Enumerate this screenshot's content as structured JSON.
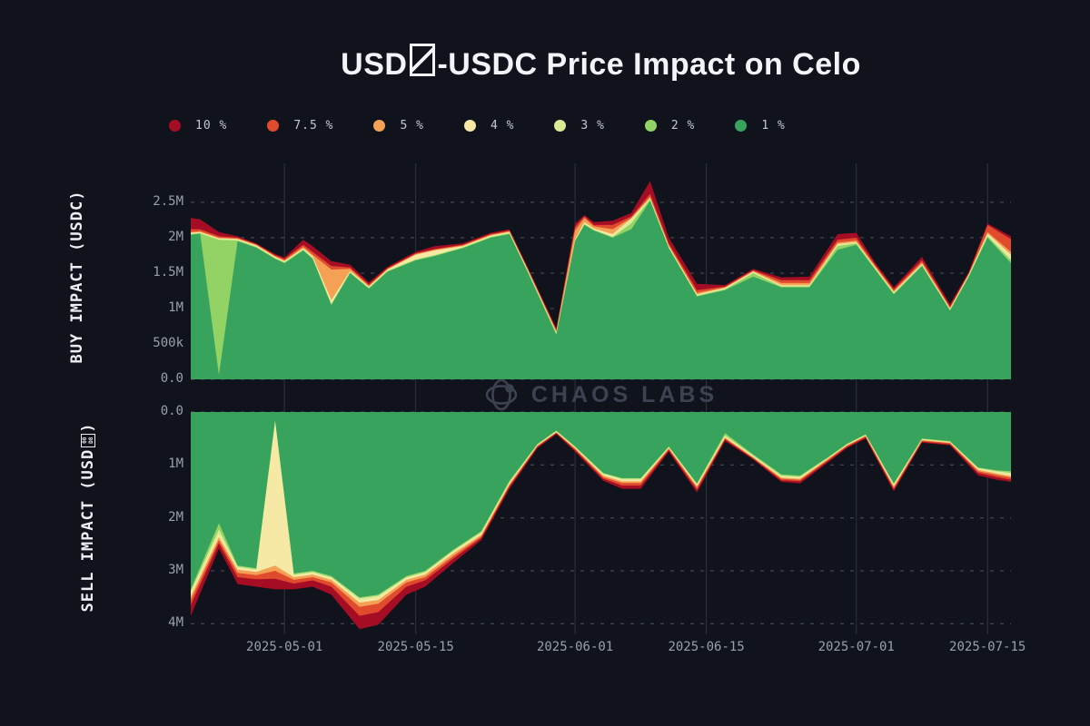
{
  "header": {
    "title_pre": "USD",
    "title_post": "-USDC Price Impact on Celo",
    "title_missing_glyph": "slashed-box (unrenderable character for USD0 token symbol)"
  },
  "watermark": {
    "text": "CHAOS LABS",
    "icon": "chaos-labs-orbit-icon",
    "color": "#3d4250"
  },
  "legend": [
    {
      "label": "10 %",
      "color": "#a50d24"
    },
    {
      "label": "7.5 %",
      "color": "#e14b2d"
    },
    {
      "label": "5 %",
      "color": "#f4a156"
    },
    {
      "label": "4 %",
      "color": "#f6e9a6"
    },
    {
      "label": "3 %",
      "color": "#d9eb95"
    },
    {
      "label": "2 %",
      "color": "#93d264"
    },
    {
      "label": "1 %",
      "color": "#37a35c"
    }
  ],
  "axis_titles": {
    "buy": "BUY IMPACT (USDC)",
    "sell_pre": "SELL IMPACT (USD",
    "sell_post": ")",
    "sell_glyph_hex": [
      "00",
      "D8"
    ]
  },
  "colors": {
    "background": "#11131c",
    "grid_dashed": "#4d525d",
    "grid_solid": "#2f3441",
    "tick_text": "#99a0ac",
    "title_text": "#f3f4f8"
  },
  "chart_data": [
    {
      "type": "area",
      "id": "buy",
      "ylabel": "BUY IMPACT (USDC)",
      "x_unit": "days since 2025-04-21",
      "xlim": [
        0,
        87.5
      ],
      "ylim": [
        0,
        3.05
      ],
      "inverted": false,
      "grid": "horizontal-dashed, vertical-solid",
      "legend_position": "top",
      "x_ticks": [
        {
          "d": 10,
          "label": "2025-05-01"
        },
        {
          "d": 24,
          "label": "2025-05-15"
        },
        {
          "d": 41,
          "label": "2025-06-01"
        },
        {
          "d": 55,
          "label": "2025-06-15"
        },
        {
          "d": 71,
          "label": "2025-07-01"
        },
        {
          "d": 85,
          "label": "2025-07-15"
        }
      ],
      "y_ticks": [
        {
          "v": 0,
          "label": "0.0"
        },
        {
          "v": 0.5,
          "label": "500k"
        },
        {
          "v": 1,
          "label": "1M"
        },
        {
          "v": 1.5,
          "label": "1.5M"
        },
        {
          "v": 2,
          "label": "2M"
        },
        {
          "v": 2.5,
          "label": "2.5M"
        }
      ],
      "unit": "millions USDC",
      "x": [
        0,
        1,
        3,
        5,
        7,
        9,
        10,
        12,
        13,
        15,
        17,
        19,
        21,
        24,
        26,
        29,
        32,
        34,
        36,
        39,
        41,
        42,
        43,
        45,
        47,
        49,
        51,
        54,
        57,
        60,
        63,
        66,
        69,
        71,
        73,
        75,
        78,
        81,
        83,
        85,
        87.5
      ],
      "series": [
        {
          "name": "10 %",
          "color": "#a50d24",
          "values": [
            2.28,
            2.26,
            2.08,
            2.02,
            1.92,
            1.77,
            1.72,
            1.97,
            1.88,
            1.67,
            1.62,
            1.37,
            1.59,
            1.8,
            1.88,
            1.92,
            2.07,
            2.12,
            1.57,
            0.72,
            2.2,
            2.32,
            2.22,
            2.24,
            2.35,
            2.8,
            2.0,
            1.35,
            1.33,
            1.56,
            1.44,
            1.45,
            2.05,
            2.07,
            1.65,
            1.3,
            1.73,
            1.06,
            1.52,
            2.2,
            2.02
          ]
        },
        {
          "name": "7.5 %",
          "color": "#e14b2d",
          "values": [
            2.12,
            2.12,
            2.02,
            2.0,
            1.91,
            1.75,
            1.7,
            1.9,
            1.8,
            1.6,
            1.58,
            1.34,
            1.57,
            1.78,
            1.84,
            1.9,
            2.05,
            2.1,
            1.55,
            0.7,
            2.15,
            2.3,
            2.18,
            2.18,
            2.3,
            2.62,
            1.92,
            1.26,
            1.31,
            1.54,
            1.4,
            1.4,
            1.97,
            2.0,
            1.62,
            1.27,
            1.68,
            1.03,
            1.5,
            2.18,
            1.98
          ]
        },
        {
          "name": "5 %",
          "color": "#f4a156",
          "values": [
            2.08,
            2.09,
            2.0,
            1.99,
            1.9,
            1.74,
            1.68,
            1.87,
            1.76,
            1.55,
            1.56,
            1.32,
            1.56,
            1.77,
            1.83,
            1.89,
            2.04,
            2.09,
            1.54,
            0.68,
            2.1,
            2.28,
            2.16,
            2.12,
            2.28,
            2.58,
            1.89,
            1.22,
            1.3,
            1.53,
            1.36,
            1.36,
            1.93,
            1.96,
            1.6,
            1.25,
            1.65,
            1.01,
            1.49,
            2.08,
            1.8
          ]
        },
        {
          "name": "4 %",
          "color": "#f6e9a6",
          "values": [
            2.07,
            2.08,
            1.99,
            1.98,
            1.89,
            1.73,
            1.67,
            1.85,
            1.74,
            1.12,
            1.53,
            1.31,
            1.55,
            1.76,
            1.82,
            1.88,
            2.03,
            2.08,
            1.53,
            0.66,
            1.98,
            2.22,
            2.13,
            2.05,
            2.27,
            2.56,
            1.88,
            1.2,
            1.29,
            1.52,
            1.33,
            1.33,
            1.91,
            1.94,
            1.58,
            1.23,
            1.63,
            1.0,
            1.48,
            2.06,
            1.76
          ]
        },
        {
          "name": "3 %",
          "color": "#d9eb95",
          "values": [
            2.06,
            2.07,
            1.98,
            1.97,
            1.88,
            1.72,
            1.66,
            1.84,
            1.73,
            1.08,
            1.52,
            1.3,
            1.54,
            1.7,
            1.76,
            1.87,
            2.02,
            2.07,
            1.52,
            0.65,
            1.97,
            2.2,
            2.12,
            2.02,
            2.26,
            2.55,
            1.87,
            1.19,
            1.28,
            1.51,
            1.32,
            1.32,
            1.9,
            1.93,
            1.57,
            1.22,
            1.62,
            0.99,
            1.47,
            2.04,
            1.72
          ]
        },
        {
          "name": "2 %",
          "color": "#93d264",
          "values": [
            2.05,
            2.06,
            1.97,
            1.96,
            1.87,
            1.71,
            1.65,
            1.83,
            1.71,
            1.06,
            1.51,
            1.29,
            1.53,
            1.69,
            1.75,
            1.86,
            2.01,
            2.06,
            1.51,
            0.64,
            1.96,
            2.19,
            2.11,
            2.01,
            2.2,
            2.54,
            1.86,
            1.18,
            1.27,
            1.5,
            1.31,
            1.31,
            1.88,
            1.92,
            1.56,
            1.21,
            1.61,
            0.98,
            1.46,
            2.02,
            1.68
          ]
        },
        {
          "name": "1 %",
          "color": "#37a35c",
          "values": [
            2.04,
            2.06,
            0.06,
            1.95,
            1.86,
            1.7,
            1.64,
            1.82,
            1.7,
            1.05,
            1.5,
            1.28,
            1.52,
            1.68,
            1.74,
            1.85,
            2.0,
            2.05,
            1.5,
            0.63,
            1.95,
            2.18,
            2.1,
            2.0,
            2.12,
            2.52,
            1.85,
            1.17,
            1.26,
            1.45,
            1.3,
            1.3,
            1.83,
            1.9,
            1.55,
            1.2,
            1.6,
            0.97,
            1.45,
            2.0,
            1.64
          ]
        }
      ]
    },
    {
      "type": "area",
      "id": "sell",
      "ylabel": "SELL IMPACT (USD0)",
      "x_unit": "days since 2025-04-21",
      "xlim": [
        0,
        87.5
      ],
      "ylim": [
        0,
        4.2
      ],
      "inverted": true,
      "grid": "horizontal-dashed, vertical-solid",
      "x_ticks": [
        {
          "d": 10,
          "label": "2025-05-01"
        },
        {
          "d": 24,
          "label": "2025-05-15"
        },
        {
          "d": 41,
          "label": "2025-06-01"
        },
        {
          "d": 55,
          "label": "2025-06-15"
        },
        {
          "d": 71,
          "label": "2025-07-01"
        },
        {
          "d": 85,
          "label": "2025-07-15"
        }
      ],
      "y_ticks": [
        {
          "v": 0,
          "label": "0.0"
        },
        {
          "v": 1,
          "label": "1M"
        },
        {
          "v": 2,
          "label": "2M"
        },
        {
          "v": 3,
          "label": "3M"
        },
        {
          "v": 4,
          "label": "4M"
        }
      ],
      "unit": "millions USD0 (depth, axis inverted downward)",
      "x": [
        0,
        3,
        5,
        7,
        9,
        11,
        13,
        15,
        18,
        20,
        23,
        25,
        28,
        31,
        34,
        37,
        39,
        41,
        44,
        46,
        48,
        51,
        54,
        57,
        60,
        63,
        65,
        68,
        70,
        72,
        75,
        78,
        81,
        84,
        86,
        87.5
      ],
      "series": [
        {
          "name": "10 %",
          "color": "#a50d24",
          "values": [
            3.85,
            2.58,
            3.25,
            3.3,
            3.35,
            3.35,
            3.3,
            3.45,
            4.1,
            4.02,
            3.45,
            3.3,
            2.85,
            2.42,
            1.45,
            0.68,
            0.42,
            0.75,
            1.3,
            1.45,
            1.45,
            0.75,
            1.52,
            0.55,
            0.9,
            1.32,
            1.35,
            0.95,
            0.68,
            0.5,
            1.5,
            0.58,
            0.63,
            1.2,
            1.28,
            1.32
          ]
        },
        {
          "name": "7.5 %",
          "color": "#e14b2d",
          "values": [
            3.65,
            2.48,
            3.12,
            3.16,
            3.15,
            3.24,
            3.18,
            3.3,
            3.85,
            3.78,
            3.3,
            3.18,
            2.77,
            2.38,
            1.41,
            0.66,
            0.4,
            0.72,
            1.26,
            1.39,
            1.39,
            0.72,
            1.47,
            0.52,
            0.88,
            1.29,
            1.31,
            0.92,
            0.66,
            0.48,
            1.46,
            0.56,
            0.61,
            1.15,
            1.23,
            1.28
          ]
        },
        {
          "name": "5 %",
          "color": "#f4a156",
          "values": [
            3.55,
            2.42,
            3.04,
            3.08,
            3.0,
            3.17,
            3.12,
            3.22,
            3.68,
            3.62,
            3.22,
            3.12,
            2.72,
            2.35,
            1.38,
            0.64,
            0.39,
            0.7,
            1.23,
            1.34,
            1.34,
            0.7,
            1.43,
            0.5,
            0.87,
            1.26,
            1.28,
            0.9,
            0.64,
            0.46,
            1.43,
            0.54,
            0.59,
            1.12,
            1.19,
            1.24
          ]
        },
        {
          "name": "4 %",
          "color": "#f6e9a6",
          "values": [
            3.48,
            2.36,
            2.98,
            3.02,
            2.9,
            3.12,
            3.07,
            3.17,
            3.6,
            3.55,
            3.17,
            3.07,
            2.67,
            2.32,
            1.36,
            0.63,
            0.38,
            0.68,
            1.2,
            1.31,
            1.31,
            0.68,
            1.4,
            0.48,
            0.85,
            1.24,
            1.26,
            0.88,
            0.63,
            0.45,
            1.4,
            0.53,
            0.58,
            1.09,
            1.16,
            1.21
          ]
        },
        {
          "name": "3 %",
          "color": "#d9eb95",
          "values": [
            3.42,
            2.3,
            2.94,
            2.99,
            0.19,
            3.09,
            3.04,
            3.14,
            3.55,
            3.5,
            3.14,
            3.04,
            2.64,
            2.29,
            1.34,
            0.62,
            0.37,
            0.67,
            1.18,
            1.28,
            1.28,
            0.67,
            1.38,
            0.46,
            0.84,
            1.22,
            1.24,
            0.87,
            0.62,
            0.44,
            1.38,
            0.52,
            0.57,
            1.07,
            1.14,
            1.18
          ]
        },
        {
          "name": "2 %",
          "color": "#93d264",
          "values": [
            3.38,
            2.22,
            2.92,
            2.97,
            0.17,
            3.07,
            3.02,
            3.12,
            3.52,
            3.47,
            3.12,
            3.02,
            2.62,
            2.27,
            1.32,
            0.61,
            0.36,
            0.66,
            1.16,
            1.26,
            1.26,
            0.66,
            1.36,
            0.44,
            0.82,
            1.2,
            1.22,
            0.86,
            0.61,
            0.43,
            1.36,
            0.51,
            0.56,
            1.06,
            1.12,
            1.15
          ]
        },
        {
          "name": "1 %",
          "color": "#37a35c",
          "values": [
            3.35,
            2.1,
            2.9,
            2.95,
            0.15,
            3.05,
            3.0,
            3.1,
            3.5,
            3.45,
            3.1,
            3.0,
            2.6,
            2.25,
            1.3,
            0.6,
            0.35,
            0.65,
            1.15,
            1.25,
            1.25,
            0.65,
            1.35,
            0.4,
            0.8,
            1.18,
            1.2,
            0.85,
            0.6,
            0.42,
            1.35,
            0.5,
            0.55,
            1.05,
            1.1,
            1.12
          ]
        }
      ]
    }
  ]
}
